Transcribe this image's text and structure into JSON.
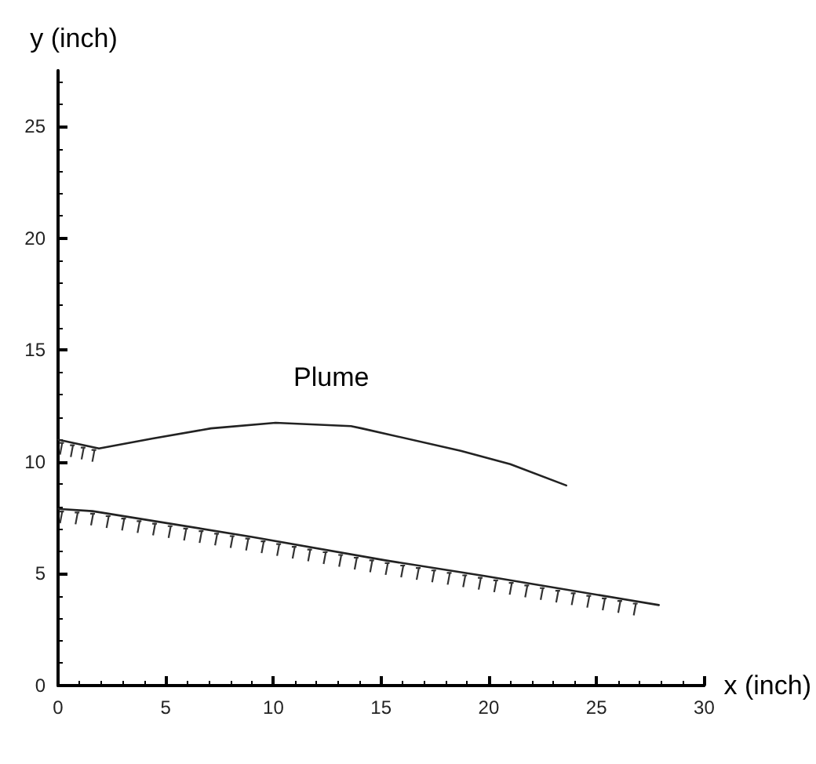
{
  "chart_data": {
    "type": "line",
    "xlabel": "x (inch)",
    "ylabel": "y (inch)",
    "annotations": [
      "Plume"
    ],
    "series": [
      {
        "color": "#222222",
        "x": [
          0,
          1.9,
          4.4,
          7.1,
          10.1,
          13.6,
          14.1,
          18.7,
          21.0,
          23.6
        ],
        "values": [
          11.0,
          10.6,
          11.05,
          11.5,
          11.75,
          11.6,
          11.5,
          10.5,
          9.9,
          8.95
        ]
      },
      {
        "color": "#222222",
        "x": [
          0,
          1.6,
          9,
          15.2,
          19.8,
          27.9
        ],
        "values": [
          7.9,
          7.8,
          6.65,
          5.6,
          4.9,
          3.6
        ]
      }
    ],
    "xlim": [
      0,
      30
    ],
    "xticks": [
      0,
      5,
      10,
      15,
      20,
      25,
      30
    ],
    "ylim": [
      0,
      27.5
    ],
    "yticks": [
      0,
      5,
      10,
      15,
      20,
      25
    ],
    "grid": false,
    "marker": "none",
    "line_style": "solid"
  }
}
